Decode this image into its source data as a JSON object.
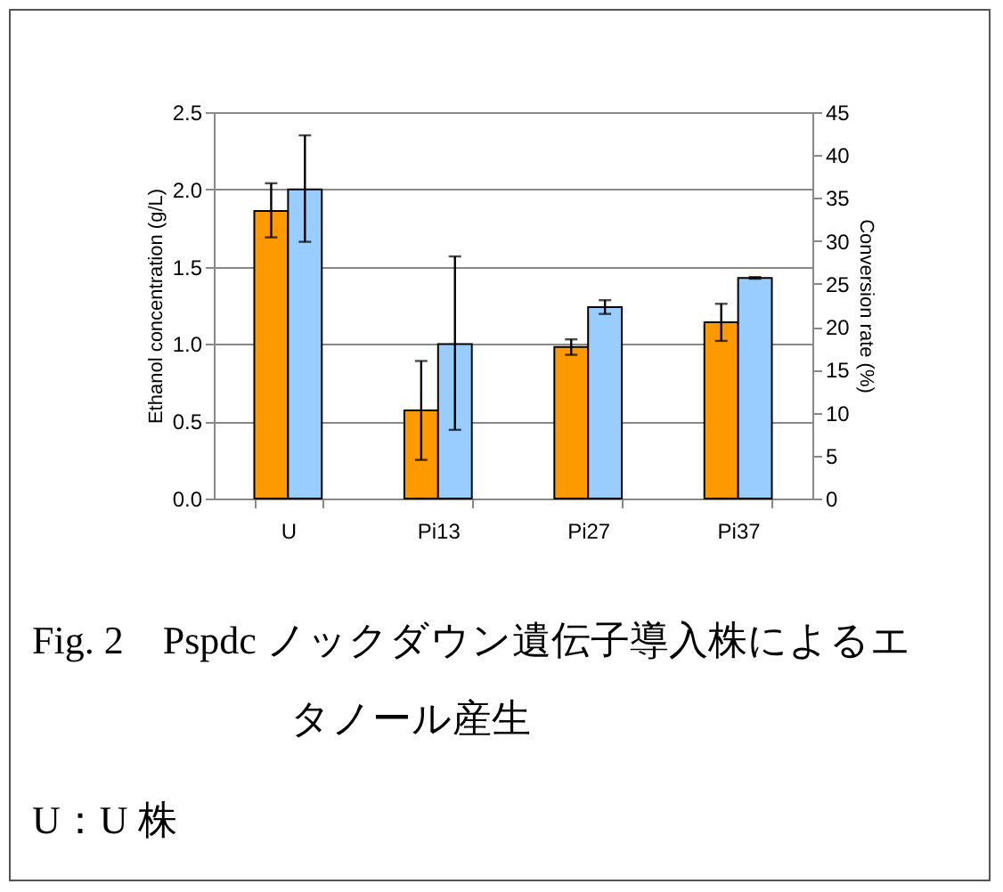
{
  "chart_data": {
    "type": "bar",
    "title": "Fig. 2　Pspdc ノックダウン遺伝子導入株によるエタノール産生",
    "annotations": [
      "U：U 株"
    ],
    "categories": [
      "U",
      "Pi13",
      "Pi27",
      "Pi37"
    ],
    "series": [
      {
        "color": "#ff9900",
        "values": [
          1.86,
          0.57,
          0.98,
          1.14
        ],
        "errors": [
          [
            1.69,
            2.04
          ],
          [
            0.25,
            0.89
          ],
          [
            0.93,
            1.03
          ],
          [
            1.02,
            1.26
          ]
        ]
      },
      {
        "color": "#99ccff",
        "axis": "y2",
        "values": [
          36,
          18,
          22.3,
          25.7
        ],
        "errors": [
          [
            29.9,
            42.3
          ],
          [
            8,
            28.2
          ],
          [
            21.5,
            23.1
          ],
          [
            25.6,
            25.8
          ]
        ]
      }
    ],
    "ylabel": "Ethanol concentration (g/L)",
    "y2label": "Conversion rate (%)",
    "ylim": [
      0,
      2.5
    ],
    "yticks": [
      {
        "value": 0,
        "label": "0.0"
      },
      {
        "value": 0.5,
        "label": "0.5"
      },
      {
        "value": 1,
        "label": "1.0"
      },
      {
        "value": 1.5,
        "label": "1.5"
      },
      {
        "value": 2,
        "label": "2.0"
      },
      {
        "value": 2.5,
        "label": "2.5"
      }
    ],
    "y2lim": [
      0,
      45
    ],
    "y2ticks": [
      0,
      5,
      10,
      15,
      20,
      25,
      30,
      35,
      40,
      45
    ],
    "grid": "y"
  }
}
